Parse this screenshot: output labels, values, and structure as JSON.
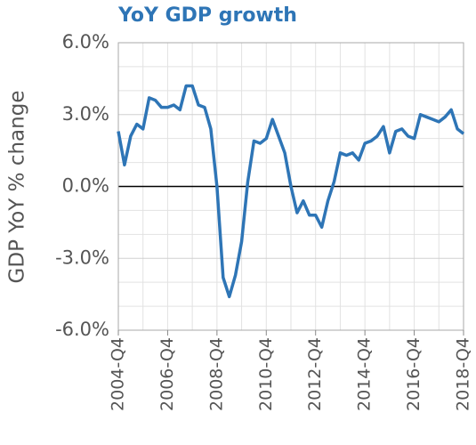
{
  "chart_data": {
    "type": "line",
    "title": "YoY GDP growth",
    "y_label": "GDP YoY % change",
    "categories": [
      "2004-Q4",
      null,
      null,
      null,
      null,
      null,
      null,
      null,
      "2006-Q4",
      null,
      null,
      null,
      null,
      null,
      null,
      null,
      "2008-Q4",
      null,
      null,
      null,
      null,
      null,
      null,
      null,
      "2010-Q4",
      null,
      null,
      null,
      null,
      null,
      null,
      null,
      "2012-Q4",
      null,
      null,
      null,
      null,
      null,
      null,
      null,
      "2014-Q4",
      null,
      null,
      null,
      null,
      null,
      null,
      null,
      "2016-Q4",
      null,
      null,
      null,
      null,
      null,
      null,
      null,
      "2018-Q4"
    ],
    "series": [
      {
        "name": "GDP YoY",
        "color": "#2e75b6",
        "values": [
          2.3,
          0.9,
          2.1,
          2.6,
          2.4,
          3.7,
          3.6,
          3.3,
          3.3,
          3.4,
          3.2,
          4.2,
          4.2,
          3.4,
          3.3,
          2.4,
          0.0,
          -3.8,
          -4.6,
          -3.7,
          -2.3,
          0.2,
          1.9,
          1.8,
          2.0,
          2.8,
          2.1,
          1.4,
          0.0,
          -1.1,
          -0.6,
          -1.2,
          -1.2,
          -1.7,
          -0.6,
          0.2,
          1.4,
          1.3,
          1.4,
          1.1,
          1.8,
          1.9,
          2.1,
          2.5,
          1.4,
          2.3,
          2.4,
          2.1,
          2.0,
          3.0,
          2.9,
          2.8,
          2.7,
          2.9,
          3.2,
          2.4,
          2.2
        ]
      }
    ],
    "ylim": [
      -6,
      6
    ],
    "yticks": [
      {
        "value": -6,
        "label": "-6.0%"
      },
      {
        "value": -3,
        "label": "-3.0%"
      },
      {
        "value": 0,
        "label": "0.0%"
      },
      {
        "value": 3,
        "label": "3.0%"
      },
      {
        "value": 6,
        "label": "6.0%"
      }
    ],
    "y_minor_ticks": [
      -5,
      -4,
      -2,
      -1,
      1,
      2,
      4,
      5
    ],
    "grid": true
  }
}
